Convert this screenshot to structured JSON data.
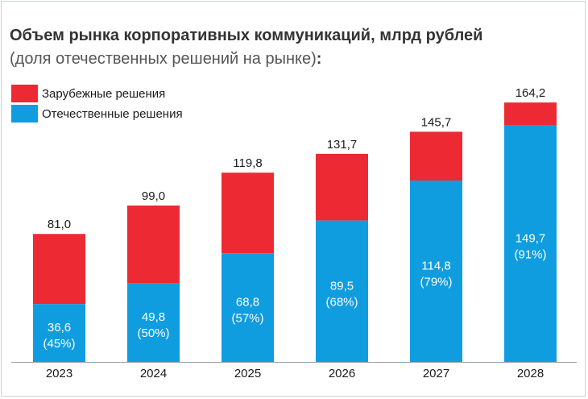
{
  "title": "Объем рынка корпоративных коммуникаций, млрд рублей",
  "subtitle": "(доля отечественных решений на рынке)",
  "subtitle_colon": ":",
  "colors": {
    "foreign": "#ed2a33",
    "domestic": "#109de0"
  },
  "legend": [
    {
      "label": "Зарубежные решения",
      "color": "#ed2a33"
    },
    {
      "label": "Отечественные решения",
      "color": "#109de0"
    }
  ],
  "chart_data": {
    "type": "bar",
    "stacked": true,
    "categories": [
      "2023",
      "2024",
      "2025",
      "2026",
      "2027",
      "2028"
    ],
    "series": [
      {
        "name": "Отечественные решения",
        "values": [
          36.6,
          49.8,
          68.8,
          89.5,
          114.8,
          149.7
        ]
      },
      {
        "name": "Зарубежные решения",
        "values": [
          44.4,
          49.2,
          51.0,
          42.2,
          30.9,
          14.5
        ]
      }
    ],
    "totals": [
      81.0,
      99.0,
      119.8,
      131.7,
      145.7,
      164.2
    ],
    "total_labels": [
      "81,0",
      "99,0",
      "119,8",
      "131,7",
      "145,7",
      "164,2"
    ],
    "domestic_labels": [
      "36,6",
      "49,8",
      "68,8",
      "89,5",
      "114,8",
      "149,7"
    ],
    "domestic_share_labels": [
      "(45%)",
      "(50%)",
      "(57%)",
      "(68%)",
      "(79%)",
      "(91%)"
    ],
    "ylim": [
      0,
      175
    ],
    "grid": false,
    "legend_position": "top-left"
  }
}
